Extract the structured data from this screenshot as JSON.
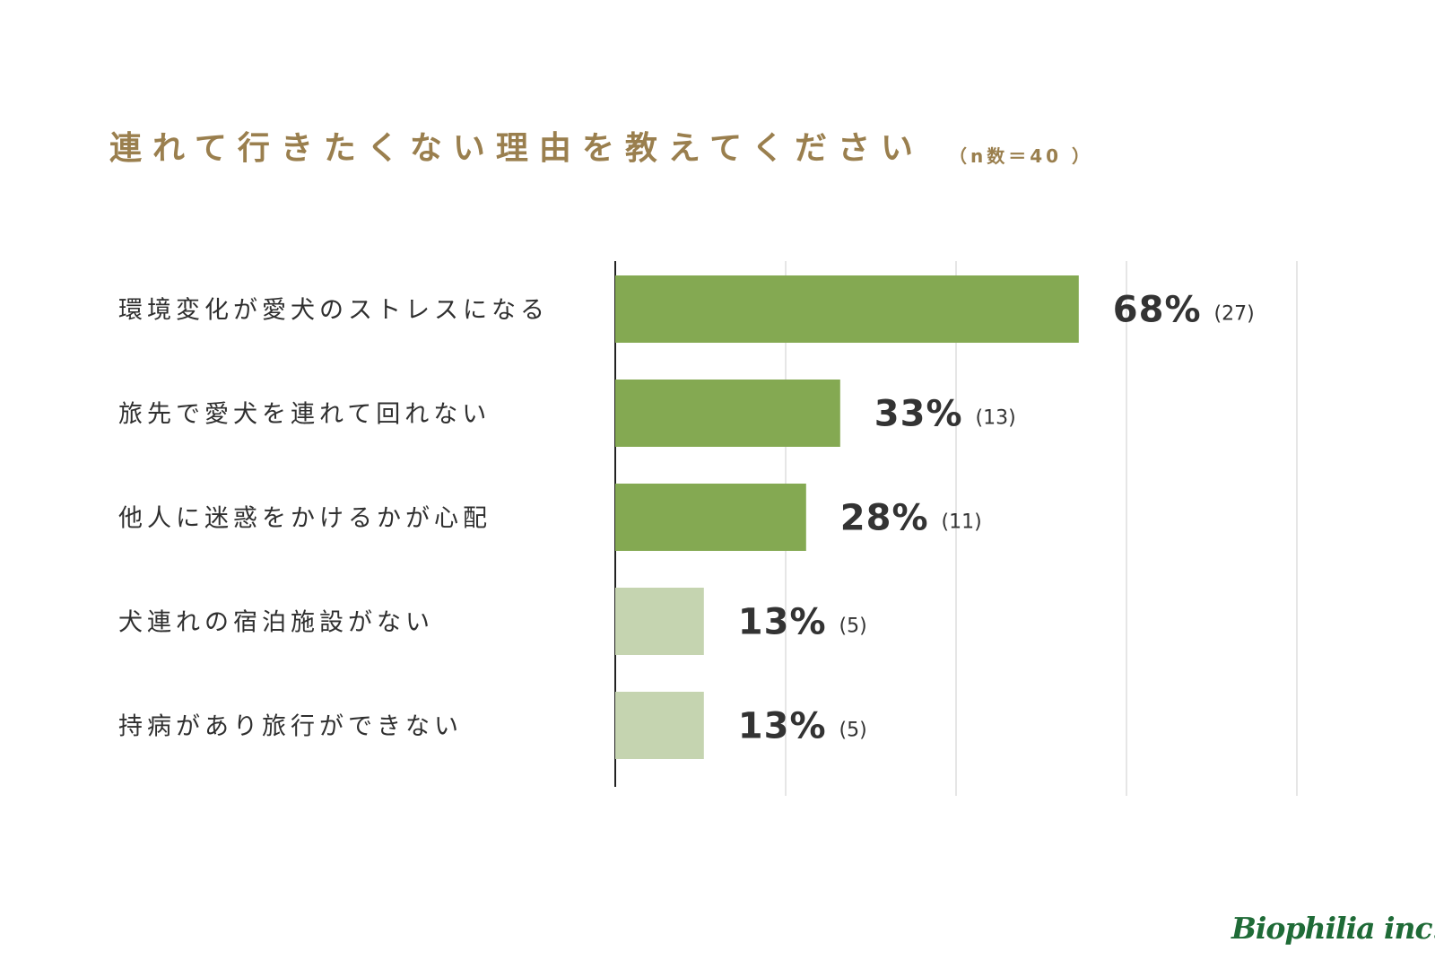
{
  "chart_data": {
    "type": "bar",
    "orientation": "horizontal",
    "title": "連れて行きたくない理由を教えてください",
    "subtitle": "（n数＝40 ）",
    "categories": [
      "環境変化が愛犬のストレスになる",
      "旅先で愛犬を連れて回れない",
      "他人に迷惑をかけるかが心配",
      "犬連れの宿泊施設がない",
      "持病があり旅行ができない"
    ],
    "values": [
      68,
      33,
      28,
      13,
      13
    ],
    "value_labels": [
      "68%",
      "33%",
      "28%",
      "13%",
      "13%"
    ],
    "counts": [
      "(27)",
      "(13)",
      "(11)",
      "(5)",
      "(5)"
    ],
    "xlim": [
      0,
      100
    ],
    "grid": true,
    "bar_colors": [
      "#84a952",
      "#84a952",
      "#84a952",
      "#c5d4b0",
      "#c5d4b0"
    ],
    "grid_color": "#e6e6e6",
    "axis_color": "#222222"
  },
  "logo": {
    "text": "Biophilia inc.",
    "color": "#1f6b37"
  }
}
